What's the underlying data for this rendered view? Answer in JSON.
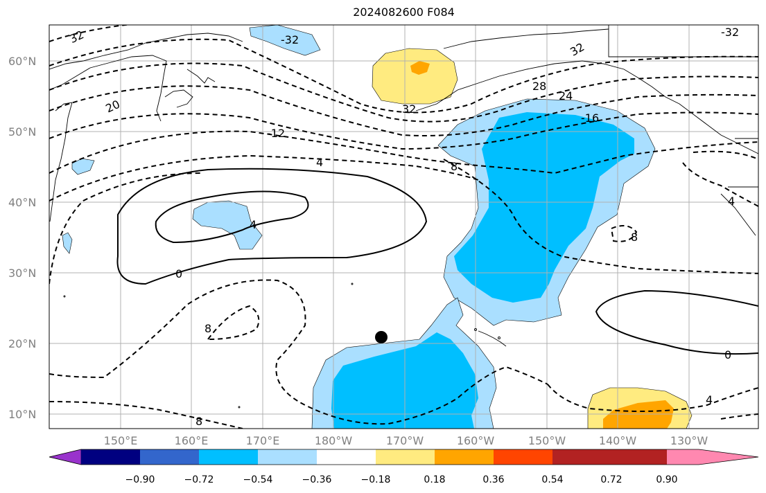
{
  "title": "2024082600 F084",
  "lat_labels": [
    "60°N",
    "50°N",
    "40°N",
    "30°N",
    "20°N",
    "10°N"
  ],
  "lon_labels": [
    "150°E",
    "160°E",
    "170°E",
    "180°W",
    "170°W",
    "160°W",
    "150°W",
    "140°W",
    "130°W"
  ],
  "colorbar": {
    "ticks": [
      "−0.90",
      "−0.72",
      "−0.54",
      "−0.36",
      "−0.18",
      "0.18",
      "0.36",
      "0.54",
      "0.72",
      "0.90"
    ],
    "colors": [
      "#9933cc",
      "#000080",
      "#3366cc",
      "#00bfff",
      "#aadfff",
      "#ffffff",
      "#ffeb80",
      "#ffa500",
      "#ff4500",
      "#b22222",
      "#ff88b0"
    ]
  },
  "contour_labels": {
    "c1": "32",
    "c2": "-32",
    "c3": "32",
    "c4": "-32",
    "c5": "32",
    "c6": "20",
    "c7": "-12",
    "c8": "28",
    "c9": "24",
    "c10": "-16",
    "c11": "4",
    "c12": "8",
    "c13": "4",
    "c14": "0",
    "c15": "8",
    "c16": "8",
    "c17": "0",
    "c18": "4",
    "c19": "8",
    "c20": "4"
  },
  "marker": "black-dot"
}
